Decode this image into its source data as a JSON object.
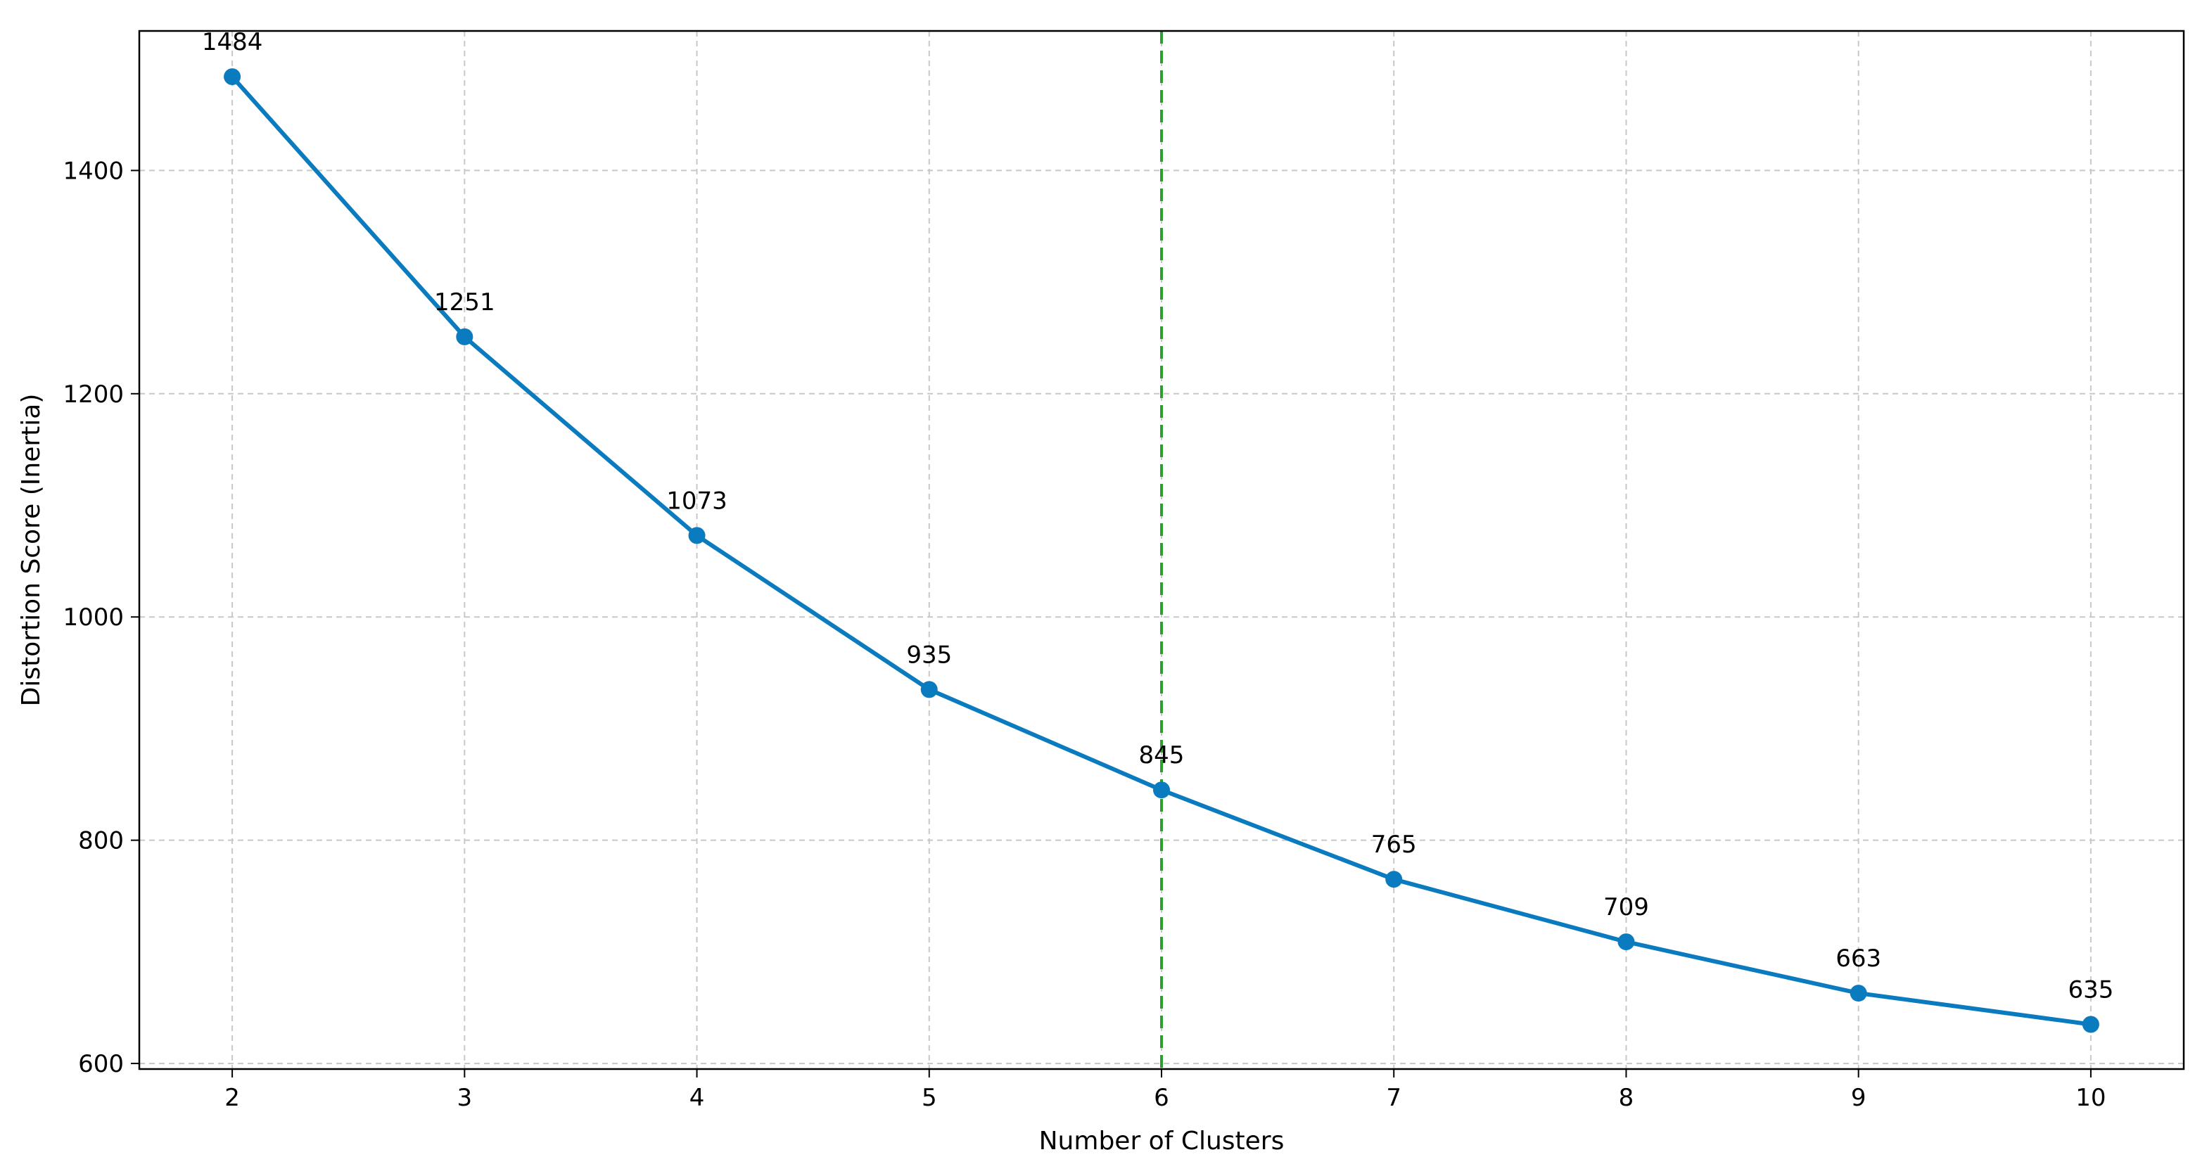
{
  "chart_data": {
    "type": "line",
    "title": "",
    "xlabel": "Number of Clusters",
    "ylabel": "Distortion Score (Inertia)",
    "x": [
      2,
      3,
      4,
      5,
      6,
      7,
      8,
      9,
      10
    ],
    "series": [
      {
        "values": [
          1484,
          1251,
          1073,
          935,
          845,
          765,
          709,
          663,
          635
        ],
        "color": "#0a7bbf",
        "marker": "circle"
      }
    ],
    "data_labels": [
      "1484",
      "1251",
      "1073",
      "935",
      "845",
      "765",
      "709",
      "663",
      "635"
    ],
    "xticks": [
      2,
      3,
      4,
      5,
      6,
      7,
      8,
      9,
      10
    ],
    "xtick_labels": [
      "2",
      "3",
      "4",
      "5",
      "6",
      "7",
      "8",
      "9",
      "10"
    ],
    "yticks": [
      600,
      800,
      1000,
      1200,
      1400
    ],
    "ytick_labels": [
      "600",
      "800",
      "1000",
      "1200",
      "1400"
    ],
    "xlim": [
      1.6,
      10.4
    ],
    "ylim": [
      595,
      1525
    ],
    "grid": true,
    "grid_style": "dashed",
    "reference_line": {
      "orientation": "vertical",
      "x": 6,
      "style": "dashed",
      "color": "#2ca02c"
    }
  }
}
